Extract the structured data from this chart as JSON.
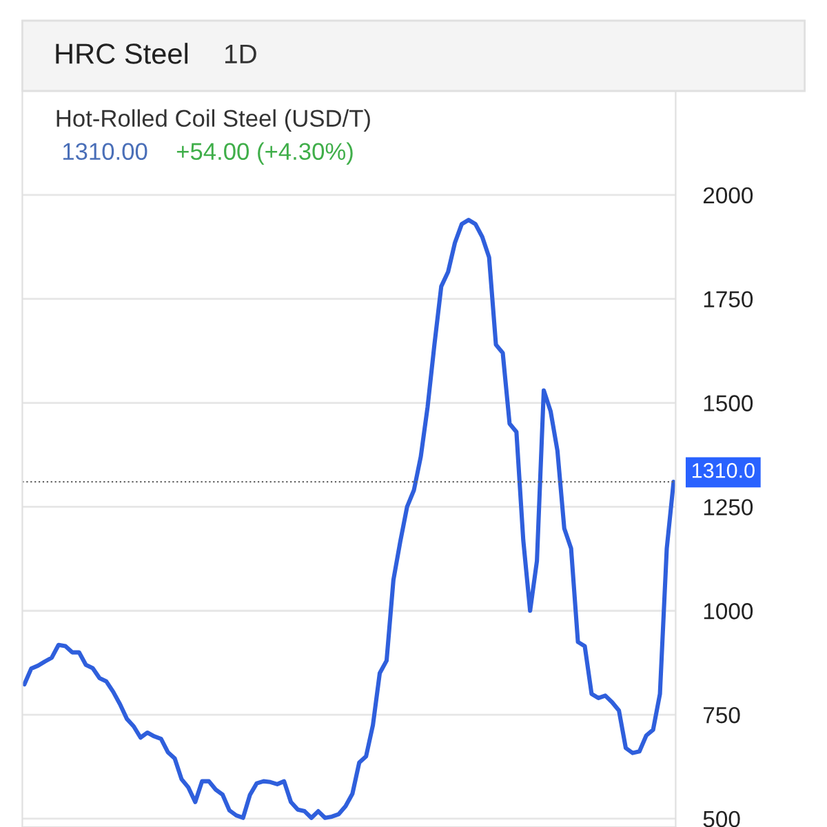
{
  "chart_data": {
    "type": "line",
    "title": "HRC Steel",
    "subtitle": "Hot-Rolled Coil Steel (USD/T)",
    "annotations": [
      "1D",
      "1310.00",
      "+54.00 (+4.30%)"
    ],
    "categories": [
      null,
      null,
      null,
      null,
      null,
      null,
      null,
      null,
      null,
      null,
      null,
      null,
      null,
      null,
      null,
      null,
      null,
      null,
      null,
      null,
      null,
      null,
      null,
      null,
      null,
      null,
      null,
      null,
      null,
      null,
      null,
      null,
      null,
      null,
      null,
      null,
      null,
      null,
      null,
      null,
      null,
      null,
      null,
      null,
      null,
      null,
      null,
      null,
      null,
      null,
      null,
      null,
      null,
      null,
      null,
      null,
      null,
      null,
      null,
      null,
      null,
      null,
      null,
      null,
      null,
      null,
      null,
      null,
      null,
      null,
      null,
      null,
      null,
      null,
      null,
      null,
      null,
      null,
      null,
      null,
      null,
      null,
      null,
      null,
      null,
      null,
      null,
      null,
      null,
      null,
      null,
      null,
      null,
      null,
      null,
      null
    ],
    "series": [
      {
        "color": "#2f5fdc",
        "values": [
          823,
          861,
          868,
          878,
          887,
          918,
          915,
          900,
          900,
          870,
          862,
          838,
          830,
          805,
          775,
          740,
          722,
          695,
          707,
          698,
          692,
          660,
          645,
          595,
          575,
          540,
          590,
          590,
          570,
          558,
          520,
          508,
          502,
          557,
          585,
          590,
          588,
          583,
          590,
          540,
          522,
          518,
          502,
          518,
          502,
          505,
          511,
          530,
          560,
          635,
          650,
          725,
          850,
          880,
          1074,
          1166,
          1250,
          1290,
          1370,
          1490,
          1640,
          1780,
          1815,
          1885,
          1930,
          1940,
          1930,
          1899,
          1850,
          1640,
          1620,
          1450,
          1430,
          1170,
          1000,
          1120,
          1530,
          1480,
          1385,
          1198,
          1150,
          925,
          915,
          800,
          790,
          796,
          780,
          760,
          670,
          658,
          662,
          700,
          714,
          800,
          1150,
          1310
        ]
      }
    ],
    "ylim": [
      480,
      2250
    ],
    "yticks": [
      500,
      750,
      1000,
      1250,
      1500,
      1750,
      2000
    ],
    "ref_lines": [
      {
        "axis": "y",
        "value": 1310,
        "label": "1310.0",
        "color": "#666666",
        "line_style": "dotted"
      }
    ],
    "grid": "y",
    "marker": "none",
    "line_style": "solid"
  }
}
